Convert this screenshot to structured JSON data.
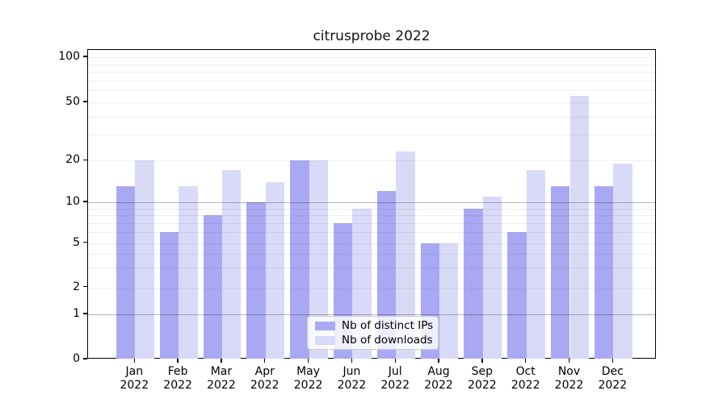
{
  "chart_data": {
    "type": "bar",
    "title": "citrusprobe 2022",
    "xlabel": "",
    "ylabel": "",
    "months": [
      "Jan",
      "Feb",
      "Mar",
      "Apr",
      "May",
      "Jun",
      "Jul",
      "Aug",
      "Sep",
      "Oct",
      "Nov",
      "Dec"
    ],
    "year": "2022",
    "categories": [
      "Jan 2022",
      "Feb 2022",
      "Mar 2022",
      "Apr 2022",
      "May 2022",
      "Jun 2022",
      "Jul 2022",
      "Aug 2022",
      "Sep 2022",
      "Oct 2022",
      "Nov 2022",
      "Dec 2022"
    ],
    "series": [
      {
        "name": "Nb of distinct IPs",
        "color": "#a9a9f3",
        "values": [
          13,
          6,
          8,
          10,
          20,
          7,
          12,
          5,
          9,
          6,
          13,
          13
        ]
      },
      {
        "name": "Nb of downloads",
        "color": "#d9d9f8",
        "values": [
          20,
          13,
          17,
          14,
          20,
          9,
          23,
          5,
          11,
          17,
          55,
          19
        ]
      }
    ],
    "y_scale": "symlog-like",
    "y_tick_labels": [
      "0",
      "1",
      "2",
      "5",
      "10",
      "20",
      "50",
      "100"
    ],
    "y_tick_values": [
      0,
      1,
      2,
      5,
      10,
      20,
      50,
      100
    ],
    "minor_grid_values": [
      2,
      3,
      4,
      5,
      6,
      7,
      8,
      9,
      20,
      30,
      40,
      50,
      60,
      70,
      80,
      90,
      100
    ],
    "major_grid_values": [
      1,
      10
    ],
    "ylim": [
      0,
      112
    ],
    "grid": true,
    "legend_position": "lower center",
    "background_color": "#ffffff",
    "frame_color": "#000000"
  }
}
